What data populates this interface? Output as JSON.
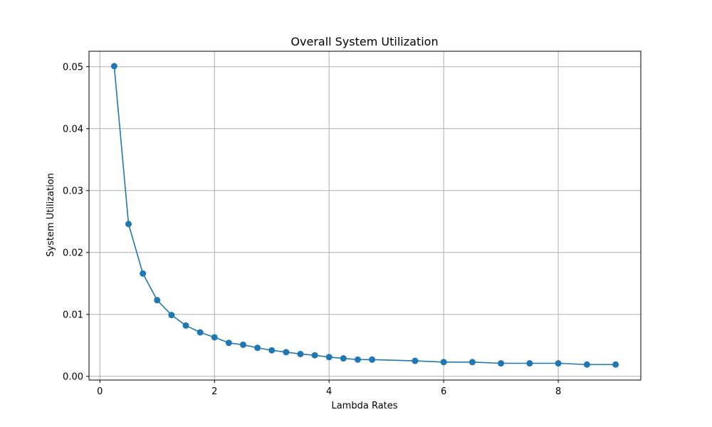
{
  "chart_data": {
    "type": "line",
    "title": "Overall System Utilization",
    "xlabel": "Lambda Rates",
    "ylabel": "System Utilization",
    "xlim": [
      -0.19,
      9.44
    ],
    "ylim": [
      -0.0006,
      0.0525
    ],
    "grid": true,
    "x_ticks": [
      {
        "value": 0,
        "label": "0"
      },
      {
        "value": 2,
        "label": "2"
      },
      {
        "value": 4,
        "label": "4"
      },
      {
        "value": 6,
        "label": "6"
      },
      {
        "value": 8,
        "label": "8"
      }
    ],
    "y_ticks": [
      {
        "value": 0.0,
        "label": "0.00"
      },
      {
        "value": 0.01,
        "label": "0.01"
      },
      {
        "value": 0.02,
        "label": "0.02"
      },
      {
        "value": 0.03,
        "label": "0.03"
      },
      {
        "value": 0.04,
        "label": "0.04"
      },
      {
        "value": 0.05,
        "label": "0.05"
      }
    ],
    "series": [
      {
        "color": "#1f77b4",
        "marker": "circle",
        "points": [
          {
            "x": 0.25,
            "y": 0.0501
          },
          {
            "x": 0.5,
            "y": 0.0246
          },
          {
            "x": 0.75,
            "y": 0.0166
          },
          {
            "x": 1.0,
            "y": 0.0123
          },
          {
            "x": 1.25,
            "y": 0.0099
          },
          {
            "x": 1.5,
            "y": 0.0082
          },
          {
            "x": 1.75,
            "y": 0.0071
          },
          {
            "x": 2.0,
            "y": 0.0063
          },
          {
            "x": 2.25,
            "y": 0.0054
          },
          {
            "x": 2.5,
            "y": 0.0051
          },
          {
            "x": 2.75,
            "y": 0.0046
          },
          {
            "x": 3.0,
            "y": 0.0042
          },
          {
            "x": 3.25,
            "y": 0.0039
          },
          {
            "x": 3.5,
            "y": 0.0036
          },
          {
            "x": 3.75,
            "y": 0.0034
          },
          {
            "x": 4.0,
            "y": 0.0031
          },
          {
            "x": 4.25,
            "y": 0.0029
          },
          {
            "x": 4.5,
            "y": 0.0027
          },
          {
            "x": 4.75,
            "y": 0.0027
          },
          {
            "x": 5.5,
            "y": 0.0025
          },
          {
            "x": 6.0,
            "y": 0.0023
          },
          {
            "x": 6.5,
            "y": 0.0023
          },
          {
            "x": 7.0,
            "y": 0.0021
          },
          {
            "x": 7.5,
            "y": 0.0021
          },
          {
            "x": 8.0,
            "y": 0.0021
          },
          {
            "x": 8.5,
            "y": 0.0019
          },
          {
            "x": 9.0,
            "y": 0.0019
          }
        ]
      }
    ]
  }
}
